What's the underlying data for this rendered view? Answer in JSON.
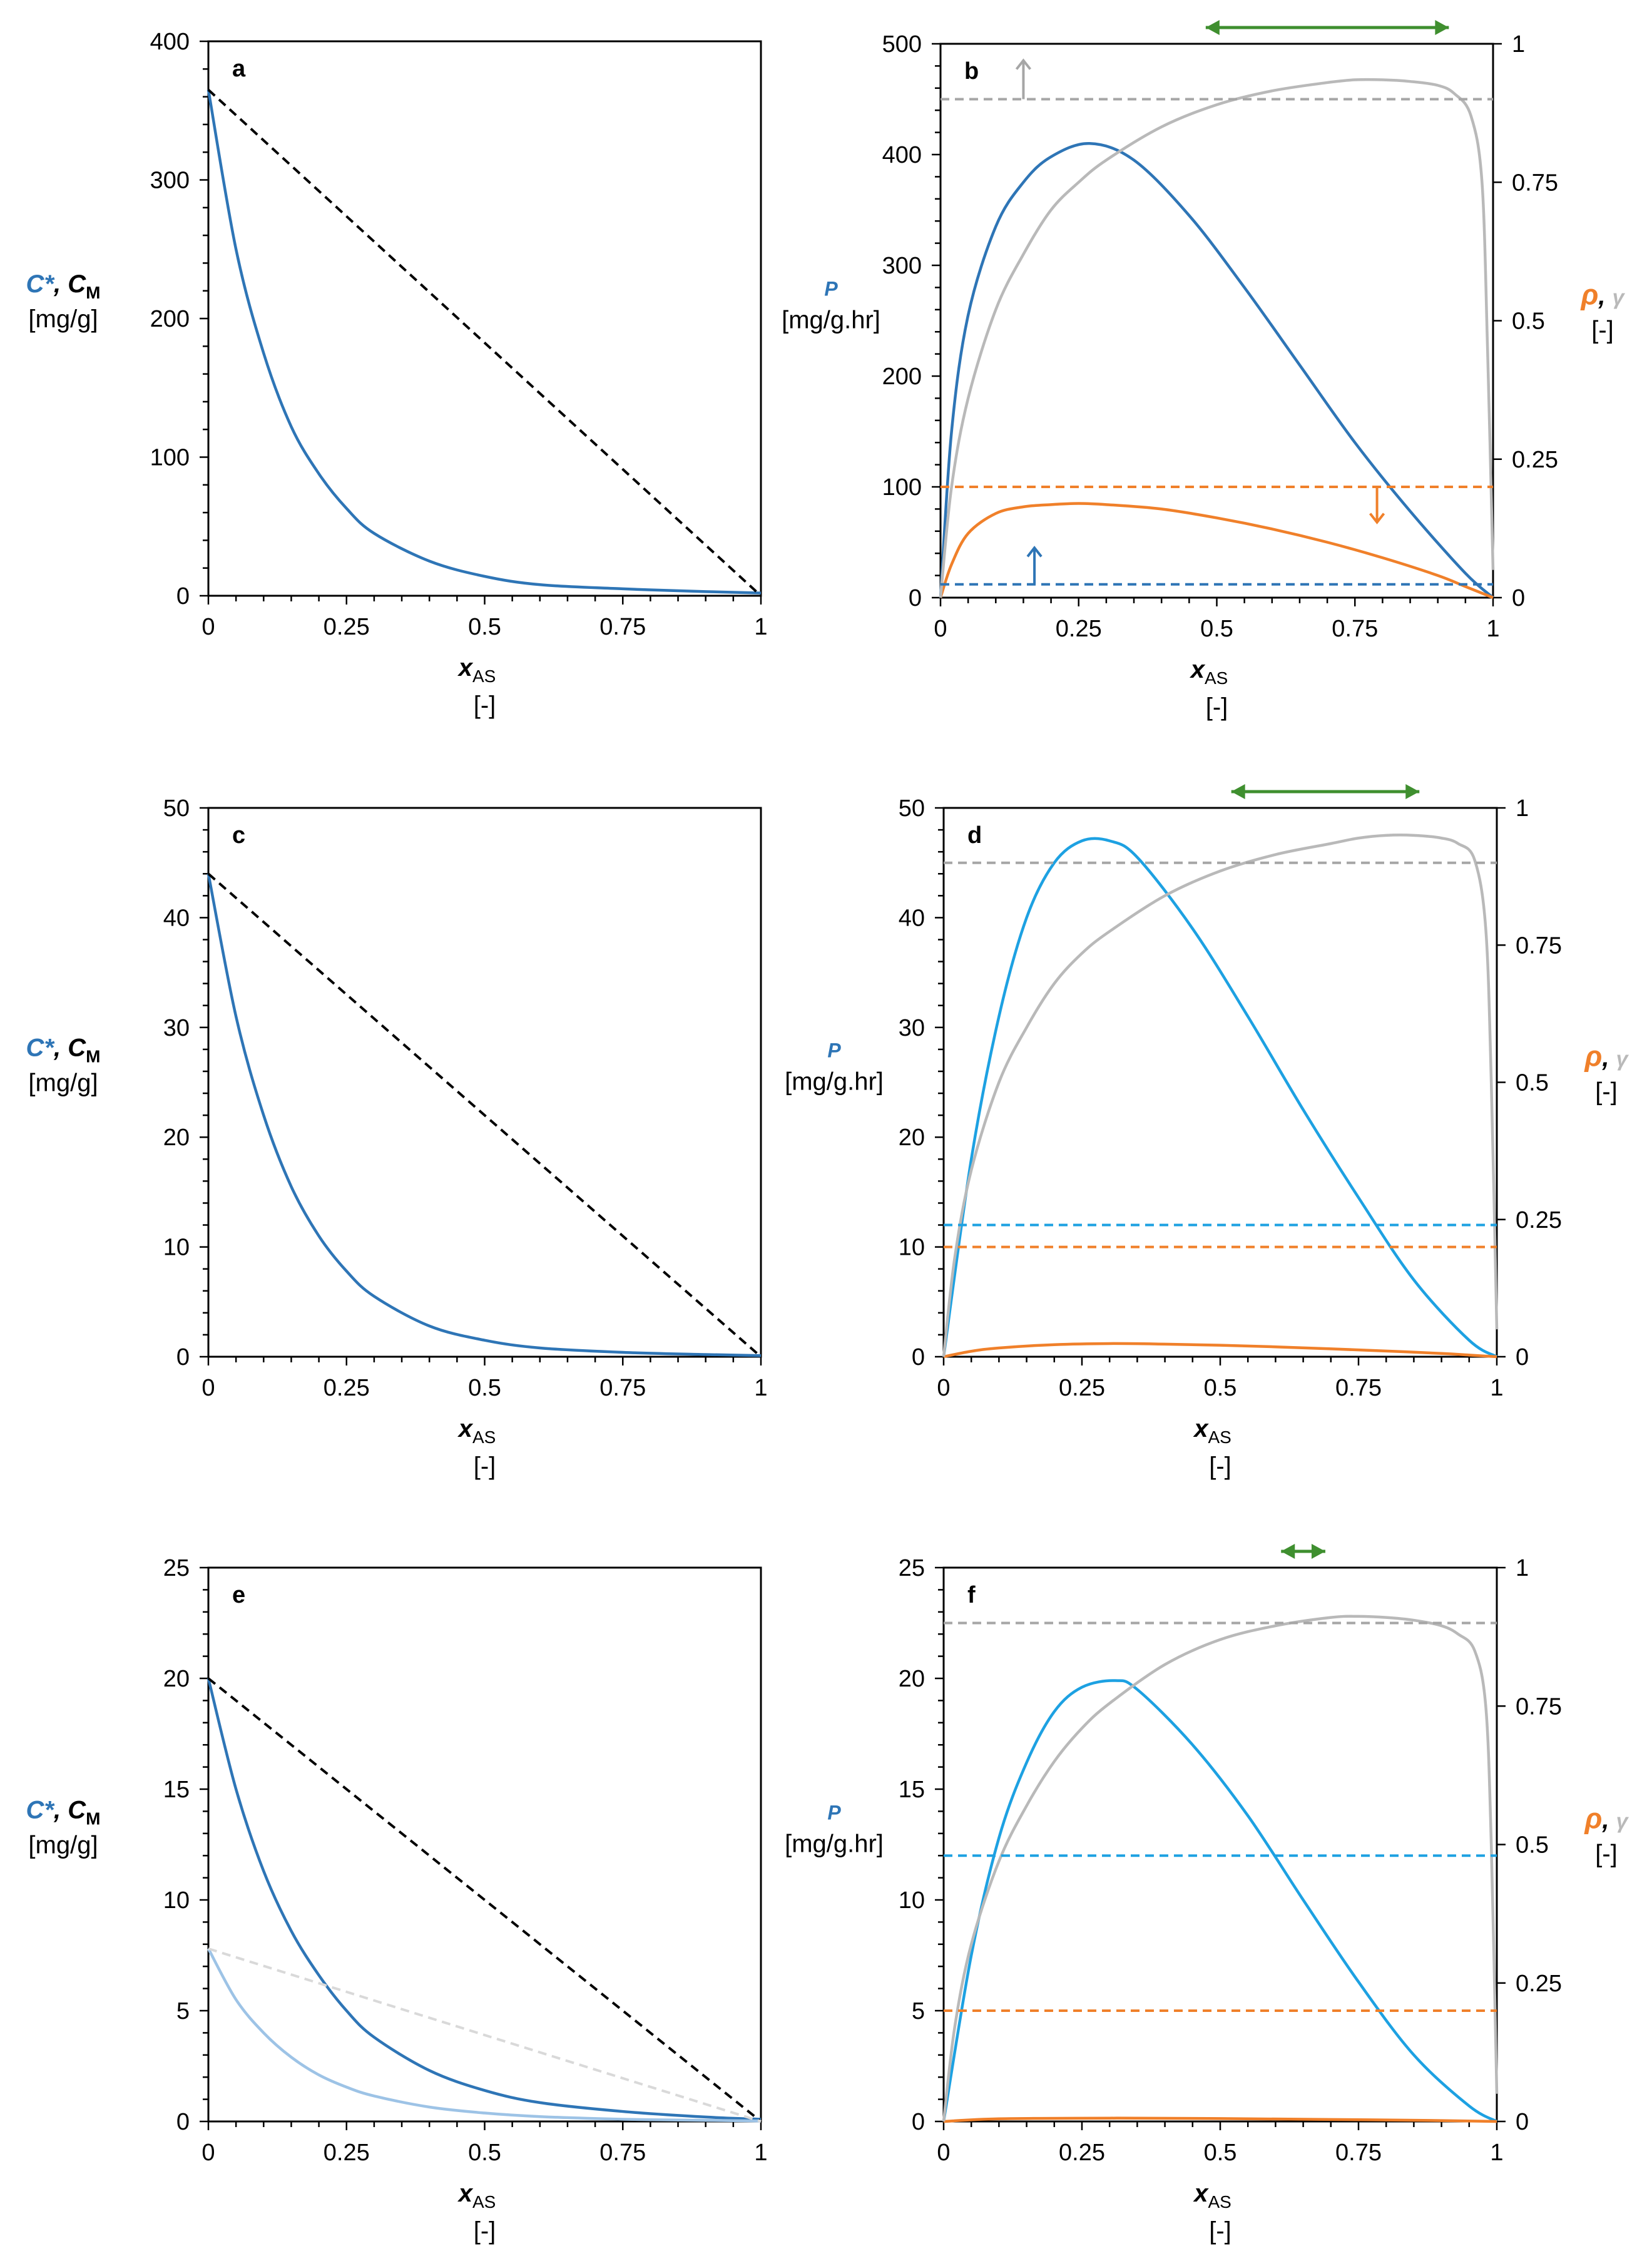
{
  "colors": {
    "blue": "#2e75b6",
    "lightblue": "#9dc3e6",
    "cyan": "#1da1e2",
    "orange": "#f0802a",
    "gray": "#b9b9b9",
    "darkgray": "#a6a6a6",
    "green": "#3f8f2f",
    "black": "#000000",
    "lightgray": "#d9d9d9"
  },
  "chart_data": [
    {
      "id": "a",
      "type": "line",
      "panel_label": "a",
      "xlabel_main": "x",
      "xlabel_sub": "AS",
      "xlabel_unit": "[-]",
      "ylabel_parts": [
        "C*",
        ", ",
        "C",
        "M"
      ],
      "ylabel_unit": "[mg/g]",
      "xlim": [
        0,
        1
      ],
      "ylim": [
        0,
        400
      ],
      "xticks": [
        0,
        0.25,
        0.5,
        0.75,
        1
      ],
      "xtick_labels": [
        "0",
        "0.25",
        "0.5",
        "0.75",
        "1"
      ],
      "yticks": [
        0,
        100,
        200,
        300,
        400
      ],
      "ytick_labels": [
        "0",
        "100",
        "200",
        "300",
        "400"
      ],
      "series": [
        {
          "name": "C*",
          "style": "solid",
          "color": "blue",
          "axis": "left",
          "x": [
            0,
            0.05,
            0.1,
            0.15,
            0.2,
            0.25,
            0.3,
            0.4,
            0.5,
            0.6,
            0.75,
            0.9,
            1
          ],
          "y": [
            365,
            250,
            175,
            122,
            88,
            63,
            45,
            25,
            14,
            8,
            5,
            3,
            2
          ]
        },
        {
          "name": "C_M",
          "style": "dashed",
          "color": "black",
          "axis": "left",
          "x": [
            0,
            1
          ],
          "y": [
            365,
            0
          ]
        }
      ]
    },
    {
      "id": "b",
      "type": "line",
      "panel_label": "b",
      "xlabel_main": "x",
      "xlabel_sub": "AS",
      "xlabel_unit": "[-]",
      "ylabel_left": "P",
      "ylabel_left_unit": "[mg/g.hr]",
      "ylabel_right_parts": [
        "ρ",
        ", ",
        "γ"
      ],
      "ylabel_right_unit": "[-]",
      "xlim": [
        0,
        1
      ],
      "ylim": [
        0,
        500
      ],
      "y2lim": [
        0,
        1
      ],
      "xticks": [
        0,
        0.25,
        0.5,
        0.75,
        1
      ],
      "xtick_labels": [
        "0",
        "0.25",
        "0.5",
        "0.75",
        "1"
      ],
      "yticks": [
        0,
        100,
        200,
        300,
        400,
        500
      ],
      "ytick_labels": [
        "0",
        "100",
        "200",
        "300",
        "400",
        "500"
      ],
      "y2ticks": [
        0,
        0.25,
        0.5,
        0.75,
        1
      ],
      "y2tick_labels": [
        "0",
        "0.25",
        "0.5",
        "0.75",
        "1"
      ],
      "series": [
        {
          "name": "P",
          "style": "solid",
          "color": "blue",
          "axis": "left",
          "x": [
            0,
            0.02,
            0.05,
            0.1,
            0.15,
            0.2,
            0.27,
            0.35,
            0.45,
            0.55,
            0.65,
            0.75,
            0.85,
            0.95,
            1
          ],
          "y": [
            0,
            150,
            255,
            335,
            375,
            398,
            410,
            395,
            345,
            280,
            210,
            140,
            78,
            22,
            0
          ]
        },
        {
          "name": "ρ",
          "style": "solid",
          "color": "orange",
          "axis": "left",
          "x": [
            0,
            0.02,
            0.05,
            0.1,
            0.15,
            0.2,
            0.25,
            0.3,
            0.4,
            0.5,
            0.6,
            0.7,
            0.8,
            0.9,
            0.95,
            1
          ],
          "y": [
            0,
            30,
            58,
            76,
            82,
            84,
            85,
            84,
            80,
            72,
            62,
            50,
            36,
            20,
            10,
            0
          ]
        },
        {
          "name": "γ",
          "style": "solid",
          "color": "gray",
          "axis": "right",
          "x": [
            0,
            0.02,
            0.05,
            0.1,
            0.15,
            0.2,
            0.25,
            0.3,
            0.4,
            0.5,
            0.6,
            0.7,
            0.75,
            0.8,
            0.85,
            0.9,
            0.93,
            0.96,
            0.98,
            0.99,
            1
          ],
          "y": [
            0,
            0.2,
            0.36,
            0.52,
            0.62,
            0.7,
            0.75,
            0.79,
            0.85,
            0.89,
            0.915,
            0.93,
            0.935,
            0.935,
            0.932,
            0.925,
            0.91,
            0.87,
            0.75,
            0.45,
            0.05
          ]
        },
        {
          "name": "P threshold",
          "style": "dashed",
          "color": "blue",
          "axis": "left",
          "x": [
            0,
            1
          ],
          "y": [
            12,
            12
          ]
        },
        {
          "name": "ρ threshold",
          "style": "dashed",
          "color": "orange",
          "axis": "left",
          "x": [
            0,
            1
          ],
          "y": [
            100,
            100
          ]
        },
        {
          "name": "γ threshold",
          "style": "dashed",
          "color": "darkgray",
          "axis": "right",
          "x": [
            0,
            1
          ],
          "y": [
            0.9,
            0.9
          ]
        }
      ],
      "arrows": [
        {
          "color": "darkgray",
          "x": 0.15,
          "y_from": 450,
          "y_to": 485
        },
        {
          "color": "orange",
          "x": 0.79,
          "y_from": 100,
          "y_to": 68
        },
        {
          "color": "blue",
          "x": 0.17,
          "y_from": 12,
          "y_to": 45
        }
      ],
      "range_arrow": {
        "color": "green",
        "x_from": 0.48,
        "x_to": 0.92
      }
    },
    {
      "id": "c",
      "type": "line",
      "panel_label": "c",
      "xlabel_main": "x",
      "xlabel_sub": "AS",
      "xlabel_unit": "[-]",
      "ylabel_parts": [
        "C*",
        ", ",
        "C",
        "M"
      ],
      "ylabel_unit": "[mg/g]",
      "xlim": [
        0,
        1
      ],
      "ylim": [
        0,
        50
      ],
      "xticks": [
        0,
        0.25,
        0.5,
        0.75,
        1
      ],
      "xtick_labels": [
        "0",
        "0.25",
        "0.5",
        "0.75",
        "1"
      ],
      "yticks": [
        0,
        10,
        20,
        30,
        40,
        50
      ],
      "ytick_labels": [
        "0",
        "10",
        "20",
        "30",
        "40",
        "50"
      ],
      "series": [
        {
          "name": "C*",
          "style": "solid",
          "color": "blue",
          "axis": "left",
          "x": [
            0,
            0.05,
            0.1,
            0.15,
            0.2,
            0.25,
            0.3,
            0.4,
            0.5,
            0.6,
            0.75,
            0.9,
            1
          ],
          "y": [
            44,
            31,
            22,
            15.5,
            11,
            7.8,
            5.5,
            2.8,
            1.5,
            0.8,
            0.4,
            0.2,
            0.1
          ]
        },
        {
          "name": "C_M",
          "style": "dashed",
          "color": "black",
          "axis": "left",
          "x": [
            0,
            1
          ],
          "y": [
            44,
            0
          ]
        }
      ]
    },
    {
      "id": "d",
      "type": "line",
      "panel_label": "d",
      "xlabel_main": "x",
      "xlabel_sub": "AS",
      "xlabel_unit": "[-]",
      "ylabel_left": "P",
      "ylabel_left_unit": "[mg/g.hr]",
      "ylabel_right_parts": [
        "ρ",
        ", ",
        "γ"
      ],
      "ylabel_right_unit": "[-]",
      "xlim": [
        0,
        1
      ],
      "ylim": [
        0,
        50
      ],
      "y2lim": [
        0,
        1
      ],
      "xticks": [
        0,
        0.25,
        0.5,
        0.75,
        1
      ],
      "xtick_labels": [
        "0",
        "0.25",
        "0.5",
        "0.75",
        "1"
      ],
      "yticks": [
        0,
        10,
        20,
        30,
        40,
        50
      ],
      "ytick_labels": [
        "0",
        "10",
        "20",
        "30",
        "40",
        "50"
      ],
      "y2ticks": [
        0,
        0.25,
        0.5,
        0.75,
        1
      ],
      "y2tick_labels": [
        "0",
        "0.25",
        "0.5",
        "0.75",
        "1"
      ],
      "series": [
        {
          "name": "P",
          "style": "solid",
          "color": "cyan",
          "axis": "left",
          "x": [
            0,
            0.05,
            0.1,
            0.15,
            0.2,
            0.25,
            0.3,
            0.35,
            0.45,
            0.55,
            0.65,
            0.75,
            0.85,
            0.95,
            1
          ],
          "y": [
            0,
            18,
            31,
            40,
            45,
            47,
            47,
            45.5,
            39,
            31,
            22.5,
            14.5,
            7,
            1.5,
            0
          ]
        },
        {
          "name": "ρ",
          "style": "solid",
          "color": "orange",
          "axis": "left",
          "x": [
            0,
            0.05,
            0.1,
            0.2,
            0.3,
            0.4,
            0.5,
            0.6,
            0.7,
            0.8,
            0.9,
            0.95,
            1
          ],
          "y": [
            0,
            0.5,
            0.8,
            1.1,
            1.2,
            1.15,
            1.05,
            0.9,
            0.72,
            0.52,
            0.3,
            0.15,
            0
          ]
        },
        {
          "name": "γ",
          "style": "solid",
          "color": "gray",
          "axis": "right",
          "x": [
            0,
            0.02,
            0.05,
            0.1,
            0.15,
            0.2,
            0.25,
            0.3,
            0.4,
            0.5,
            0.6,
            0.7,
            0.75,
            0.8,
            0.85,
            0.9,
            0.93,
            0.96,
            0.98,
            0.99,
            1
          ],
          "y": [
            0,
            0.18,
            0.34,
            0.5,
            0.6,
            0.68,
            0.735,
            0.775,
            0.84,
            0.885,
            0.915,
            0.935,
            0.945,
            0.95,
            0.95,
            0.945,
            0.935,
            0.905,
            0.78,
            0.5,
            0.05
          ]
        },
        {
          "name": "P threshold",
          "style": "dashed",
          "color": "cyan",
          "axis": "left",
          "x": [
            0,
            1
          ],
          "y": [
            12,
            12
          ]
        },
        {
          "name": "ρ threshold",
          "style": "dashed",
          "color": "orange",
          "axis": "left",
          "x": [
            0,
            1
          ],
          "y": [
            10,
            10
          ]
        },
        {
          "name": "γ threshold",
          "style": "dashed",
          "color": "darkgray",
          "axis": "right",
          "x": [
            0,
            1
          ],
          "y": [
            0.9,
            0.9
          ]
        }
      ],
      "range_arrow": {
        "color": "green",
        "x_from": 0.52,
        "x_to": 0.86
      }
    },
    {
      "id": "e",
      "type": "line",
      "panel_label": "e",
      "xlabel_main": "x",
      "xlabel_sub": "AS",
      "xlabel_unit": "[-]",
      "ylabel_parts": [
        "C*",
        ", ",
        "C",
        "M"
      ],
      "ylabel_unit": "[mg/g]",
      "xlim": [
        0,
        1
      ],
      "ylim": [
        0,
        25
      ],
      "xticks": [
        0,
        0.25,
        0.5,
        0.75,
        1
      ],
      "xtick_labels": [
        "0",
        "0.25",
        "0.5",
        "0.75",
        "1"
      ],
      "yticks": [
        0,
        5,
        10,
        15,
        20,
        25
      ],
      "ytick_labels": [
        "0",
        "5",
        "10",
        "15",
        "20",
        "25"
      ],
      "series": [
        {
          "name": "C*",
          "style": "solid",
          "color": "blue",
          "axis": "left",
          "x": [
            0,
            0.05,
            0.1,
            0.15,
            0.2,
            0.25,
            0.3,
            0.4,
            0.5,
            0.6,
            0.75,
            0.9,
            1
          ],
          "y": [
            20,
            15,
            11.3,
            8.6,
            6.6,
            5,
            3.8,
            2.3,
            1.4,
            0.85,
            0.45,
            0.2,
            0.1
          ]
        },
        {
          "name": "C_M",
          "style": "dashed",
          "color": "black",
          "axis": "left",
          "x": [
            0,
            1
          ],
          "y": [
            20,
            0
          ]
        },
        {
          "name": "C* (light)",
          "style": "solid",
          "color": "lightblue",
          "axis": "left",
          "x": [
            0,
            0.05,
            0.1,
            0.15,
            0.2,
            0.25,
            0.3,
            0.4,
            0.5,
            0.6,
            0.75,
            0.9,
            1
          ],
          "y": [
            7.8,
            5.5,
            4,
            2.9,
            2.1,
            1.55,
            1.15,
            0.65,
            0.38,
            0.22,
            0.1,
            0.05,
            0.02
          ]
        },
        {
          "name": "C_M (light)",
          "style": "dashed",
          "color": "lightgray",
          "axis": "left",
          "x": [
            0,
            1
          ],
          "y": [
            7.8,
            0
          ]
        }
      ]
    },
    {
      "id": "f",
      "type": "line",
      "panel_label": "f",
      "xlabel_main": "x",
      "xlabel_sub": "AS",
      "xlabel_unit": "[-]",
      "ylabel_left": "P",
      "ylabel_left_unit": "[mg/g.hr]",
      "ylabel_right_parts": [
        "ρ",
        ", ",
        "γ"
      ],
      "ylabel_right_unit": "[-]",
      "xlim": [
        0,
        1
      ],
      "ylim": [
        0,
        25
      ],
      "y2lim": [
        0,
        1
      ],
      "xticks": [
        0,
        0.25,
        0.5,
        0.75,
        1
      ],
      "xtick_labels": [
        "0",
        "0.25",
        "0.5",
        "0.75",
        "1"
      ],
      "yticks": [
        0,
        5,
        10,
        15,
        20,
        25
      ],
      "ytick_labels": [
        "0",
        "5",
        "10",
        "15",
        "20",
        "25"
      ],
      "y2ticks": [
        0,
        0.25,
        0.5,
        0.75,
        1
      ],
      "y2tick_labels": [
        "0",
        "0.25",
        "0.5",
        "0.75",
        "1"
      ],
      "series": [
        {
          "name": "P",
          "style": "solid",
          "color": "cyan",
          "axis": "left",
          "x": [
            0,
            0.05,
            0.1,
            0.15,
            0.2,
            0.25,
            0.31,
            0.35,
            0.45,
            0.55,
            0.65,
            0.75,
            0.85,
            0.95,
            1
          ],
          "y": [
            0,
            7.5,
            12.8,
            16.2,
            18.5,
            19.6,
            19.9,
            19.5,
            17,
            13.8,
            10,
            6.3,
            3,
            0.7,
            0
          ]
        },
        {
          "name": "ρ",
          "style": "solid",
          "color": "orange",
          "axis": "left",
          "x": [
            0,
            0.1,
            0.3,
            0.5,
            0.7,
            0.9,
            1
          ],
          "y": [
            0,
            0.12,
            0.15,
            0.13,
            0.09,
            0.04,
            0
          ]
        },
        {
          "name": "γ",
          "style": "solid",
          "color": "gray",
          "axis": "right",
          "x": [
            0,
            0.02,
            0.05,
            0.1,
            0.15,
            0.2,
            0.25,
            0.3,
            0.4,
            0.5,
            0.6,
            0.7,
            0.75,
            0.8,
            0.85,
            0.9,
            0.93,
            0.96,
            0.98,
            0.99,
            1
          ],
          "y": [
            0,
            0.17,
            0.32,
            0.47,
            0.57,
            0.65,
            0.71,
            0.755,
            0.825,
            0.87,
            0.895,
            0.91,
            0.912,
            0.91,
            0.905,
            0.895,
            0.88,
            0.85,
            0.75,
            0.5,
            0.05
          ]
        },
        {
          "name": "P threshold",
          "style": "dashed",
          "color": "cyan",
          "axis": "left",
          "x": [
            0,
            1
          ],
          "y": [
            12,
            12
          ]
        },
        {
          "name": "ρ threshold",
          "style": "dashed",
          "color": "orange",
          "axis": "left",
          "x": [
            0,
            1
          ],
          "y": [
            5,
            5
          ]
        },
        {
          "name": "γ threshold",
          "style": "dashed",
          "color": "darkgray",
          "axis": "right",
          "x": [
            0,
            1
          ],
          "y": [
            0.9,
            0.9
          ]
        }
      ],
      "range_arrow": {
        "color": "green",
        "x_from": 0.61,
        "x_to": 0.69
      }
    }
  ]
}
